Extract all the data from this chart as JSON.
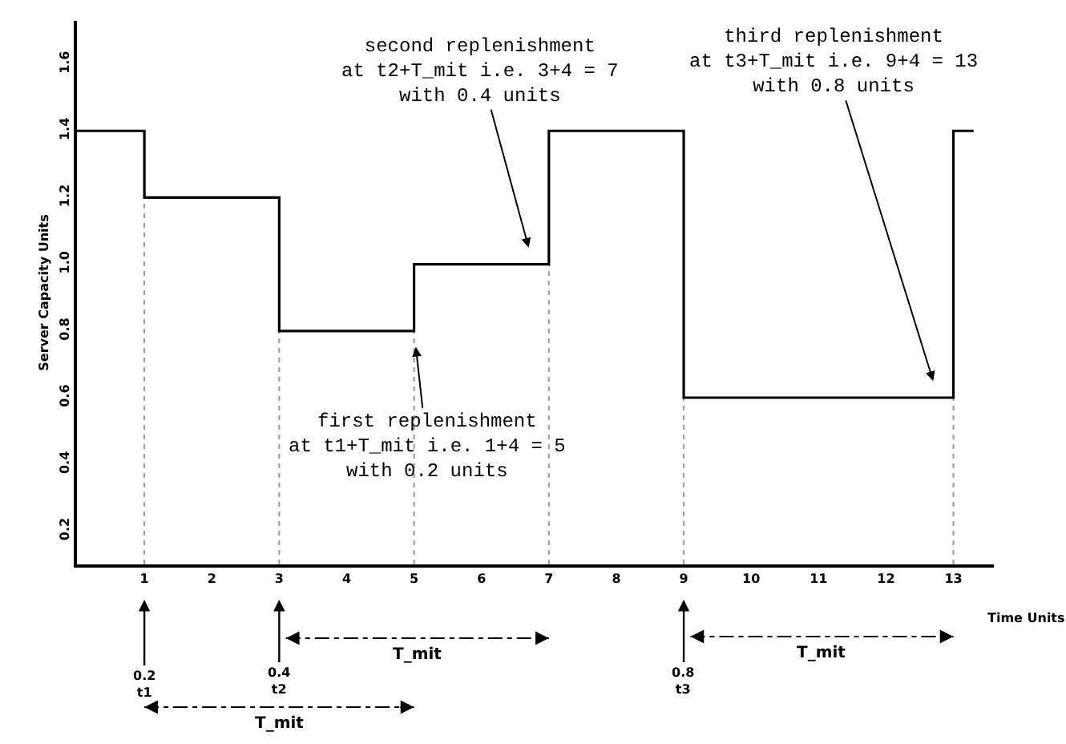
{
  "chart_data": {
    "type": "step",
    "xlabel": "Time Units",
    "ylabel": "Server Capacity Units",
    "x": [
      0,
      1,
      3,
      5,
      7,
      9,
      13,
      13.3
    ],
    "series": [
      {
        "color": "#000000",
        "values": [
          1.4,
          1.2,
          0.8,
          1.0,
          1.4,
          0.6,
          1.4,
          1.4
        ]
      }
    ],
    "xlim": [
      0,
      13.6
    ],
    "ylim": [
      0.1,
      1.73
    ],
    "xticks": [
      1,
      2,
      3,
      4,
      5,
      6,
      7,
      8,
      9,
      10,
      11,
      12,
      13
    ],
    "yticks": [
      0.2,
      0.4,
      0.6,
      0.8,
      {
        "value": 1,
        "label": "1.0"
      },
      1.2,
      1.4,
      1.6
    ],
    "grid": false,
    "marker": "none",
    "line_style": "solid",
    "ref_lines": [
      {
        "axis": "x",
        "value": 1,
        "line_style": "dotted",
        "color": "#999999"
      },
      {
        "axis": "x",
        "value": 3,
        "line_style": "dotted",
        "color": "#999999"
      },
      {
        "axis": "x",
        "value": 5,
        "line_style": "dotted",
        "color": "#999999"
      },
      {
        "axis": "x",
        "value": 7,
        "line_style": "dotted",
        "color": "#999999"
      },
      {
        "axis": "x",
        "value": 9,
        "line_style": "dotted",
        "color": "#999999"
      },
      {
        "axis": "x",
        "value": 13,
        "line_style": "dotted",
        "color": "#999999"
      }
    ],
    "annotations": [
      {
        "text": "first replenishment\nat t1+T_mit i.e. 1+4 = 5\nwith 0.2 units",
        "x": 5,
        "y": 0.8
      },
      "second replenishment\nat t2+T_mit i.e. 3+4 = 7\nwith 0.4 units",
      "third replenishment\nat t3+T_mit i.e. 9+4 = 13\nwith 0.8 units",
      {
        "text": "0.2\nt1",
        "x": 1
      },
      {
        "text": "0.4\nt2",
        "x": 3
      },
      {
        "text": "0.8\nt3",
        "x": 9
      },
      "T_mit",
      "T_mit",
      "T_mit"
    ]
  }
}
